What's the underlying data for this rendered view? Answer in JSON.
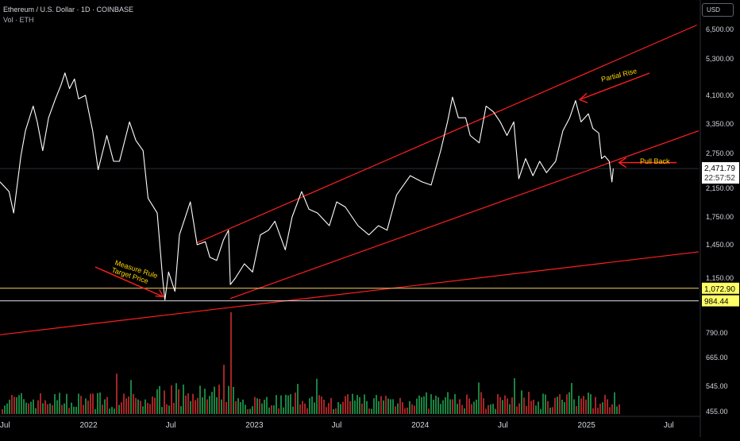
{
  "header": {
    "symbol_title": "Ethereum / U.S. Dollar · 1D · COINBASE",
    "volume_label": "Vol · ETH",
    "currency": "USD"
  },
  "colors": {
    "background": "#000000",
    "price_line": "#ffffff",
    "trendline": "#ff1f1f",
    "horizontal_line": "#f0d060",
    "volume_up": "#1f9a4b",
    "volume_down": "#c22c2c",
    "annotation_text": "#ffd700",
    "axis_text": "#d1d4dc",
    "current_price_bg": "#ffffff",
    "level_label_bg": "#ffff66"
  },
  "chart_data": {
    "type": "line",
    "x_range": [
      "2021-06-20",
      "2025-09-05"
    ],
    "y_scale": "log",
    "y_range": [
      455,
      7500
    ],
    "x_ticks": [
      {
        "date": "2021-07-01",
        "label": "Jul"
      },
      {
        "date": "2022-01-01",
        "label": "2022"
      },
      {
        "date": "2022-07-01",
        "label": "Jul"
      },
      {
        "date": "2023-01-01",
        "label": "2023"
      },
      {
        "date": "2023-07-01",
        "label": "Jul"
      },
      {
        "date": "2024-01-01",
        "label": "2024"
      },
      {
        "date": "2024-07-01",
        "label": "Jul"
      },
      {
        "date": "2025-01-01",
        "label": "2025"
      },
      {
        "date": "2025-07-01",
        "label": "Jul"
      }
    ],
    "y_ticks": [
      {
        "value": 6500,
        "label": "6,500.00"
      },
      {
        "value": 5300,
        "label": "5,300.00"
      },
      {
        "value": 4100,
        "label": "4,100.00"
      },
      {
        "value": 3350,
        "label": "3,350.00"
      },
      {
        "value": 2750,
        "label": "2,750.00"
      },
      {
        "value": 2150,
        "label": "2,150.00"
      },
      {
        "value": 1750,
        "label": "1,750.00"
      },
      {
        "value": 1450,
        "label": "1,450.00"
      },
      {
        "value": 1150,
        "label": "1,150.00"
      },
      {
        "value": 790,
        "label": "790.00"
      },
      {
        "value": 665,
        "label": "665.00"
      },
      {
        "value": 545,
        "label": "545.00"
      },
      {
        "value": 455,
        "label": "455.00"
      }
    ],
    "series": [
      {
        "values": [
          [
            "2021-06-20",
            2250
          ],
          [
            "2021-07-10",
            2100
          ],
          [
            "2021-07-20",
            1800
          ],
          [
            "2021-08-05",
            2700
          ],
          [
            "2021-08-15",
            3200
          ],
          [
            "2021-09-01",
            3800
          ],
          [
            "2021-09-10",
            3400
          ],
          [
            "2021-09-22",
            2800
          ],
          [
            "2021-10-05",
            3500
          ],
          [
            "2021-10-20",
            4000
          ],
          [
            "2021-11-01",
            4400
          ],
          [
            "2021-11-10",
            4800
          ],
          [
            "2021-11-20",
            4300
          ],
          [
            "2021-12-01",
            4600
          ],
          [
            "2021-12-10",
            4000
          ],
          [
            "2021-12-25",
            4100
          ],
          [
            "2022-01-10",
            3200
          ],
          [
            "2022-01-22",
            2450
          ],
          [
            "2022-02-10",
            3100
          ],
          [
            "2022-02-25",
            2600
          ],
          [
            "2022-03-10",
            2600
          ],
          [
            "2022-04-01",
            3400
          ],
          [
            "2022-04-15",
            3000
          ],
          [
            "2022-05-01",
            2800
          ],
          [
            "2022-05-12",
            2000
          ],
          [
            "2022-06-01",
            1800
          ],
          [
            "2022-06-13",
            1150
          ],
          [
            "2022-06-18",
            990
          ],
          [
            "2022-06-26",
            1200
          ],
          [
            "2022-07-10",
            1050
          ],
          [
            "2022-07-20",
            1550
          ],
          [
            "2022-08-13",
            1950
          ],
          [
            "2022-08-28",
            1450
          ],
          [
            "2022-09-15",
            1480
          ],
          [
            "2022-09-25",
            1330
          ],
          [
            "2022-10-10",
            1300
          ],
          [
            "2022-10-25",
            1500
          ],
          [
            "2022-11-05",
            1600
          ],
          [
            "2022-11-09",
            1100
          ],
          [
            "2022-11-20",
            1150
          ],
          [
            "2022-12-10",
            1270
          ],
          [
            "2022-12-28",
            1200
          ],
          [
            "2023-01-14",
            1550
          ],
          [
            "2023-02-01",
            1600
          ],
          [
            "2023-02-15",
            1700
          ],
          [
            "2023-03-10",
            1400
          ],
          [
            "2023-03-25",
            1750
          ],
          [
            "2023-04-15",
            2100
          ],
          [
            "2023-05-01",
            1850
          ],
          [
            "2023-05-20",
            1800
          ],
          [
            "2023-06-15",
            1650
          ],
          [
            "2023-07-01",
            1950
          ],
          [
            "2023-07-20",
            1880
          ],
          [
            "2023-08-17",
            1650
          ],
          [
            "2023-09-10",
            1550
          ],
          [
            "2023-10-01",
            1650
          ],
          [
            "2023-10-20",
            1600
          ],
          [
            "2023-11-10",
            2050
          ],
          [
            "2023-12-10",
            2350
          ],
          [
            "2024-01-05",
            2250
          ],
          [
            "2024-01-25",
            2200
          ],
          [
            "2024-02-15",
            2800
          ],
          [
            "2024-03-01",
            3400
          ],
          [
            "2024-03-12",
            4050
          ],
          [
            "2024-03-25",
            3500
          ],
          [
            "2024-04-10",
            3500
          ],
          [
            "2024-04-20",
            3100
          ],
          [
            "2024-05-10",
            2950
          ],
          [
            "2024-05-25",
            3800
          ],
          [
            "2024-06-10",
            3650
          ],
          [
            "2024-06-25",
            3400
          ],
          [
            "2024-07-10",
            3100
          ],
          [
            "2024-07-25",
            3400
          ],
          [
            "2024-08-05",
            2300
          ],
          [
            "2024-08-20",
            2650
          ],
          [
            "2024-09-05",
            2350
          ],
          [
            "2024-09-20",
            2600
          ],
          [
            "2024-10-05",
            2400
          ],
          [
            "2024-10-25",
            2600
          ],
          [
            "2024-11-10",
            3200
          ],
          [
            "2024-11-25",
            3500
          ],
          [
            "2024-12-08",
            3950
          ],
          [
            "2024-12-20",
            3400
          ],
          [
            "2025-01-05",
            3600
          ],
          [
            "2025-01-15",
            3250
          ],
          [
            "2025-01-28",
            3150
          ],
          [
            "2025-02-03",
            2650
          ],
          [
            "2025-02-10",
            2700
          ],
          [
            "2025-02-20",
            2600
          ],
          [
            "2025-02-26",
            2250
          ],
          [
            "2025-03-01",
            2471.79
          ]
        ]
      }
    ],
    "trendlines": [
      {
        "points": [
          [
            "2022-08-28",
            1470
          ],
          [
            "2025-09-01",
            6700
          ]
        ]
      },
      {
        "points": [
          [
            "2022-11-09",
            1000
          ],
          [
            "2025-09-05",
            3200
          ]
        ]
      },
      {
        "points": [
          [
            "2021-06-20",
            780
          ],
          [
            "2025-09-05",
            1380
          ]
        ]
      }
    ],
    "horizontal_levels": [
      {
        "value": 1072.9,
        "label": "1,072.90"
      },
      {
        "value": 984.44,
        "label": "984.44"
      }
    ],
    "current_price": {
      "value": 2471.79,
      "label": "2,471.79",
      "countdown": "22:57:52"
    },
    "annotations": [
      {
        "text": "Partial Rise",
        "date": "2024-12-10",
        "value": 4000
      },
      {
        "text": "Pull Back",
        "date": "2025-03-03",
        "value": 2520
      },
      {
        "text": [
          "Measure Rule",
          "Target Price"
        ],
        "date": "2022-06-18",
        "value": 990
      }
    ],
    "volume": {
      "range": [
        0,
        1
      ],
      "peak_date": "2022-11-09",
      "peak_value": 1
    }
  }
}
